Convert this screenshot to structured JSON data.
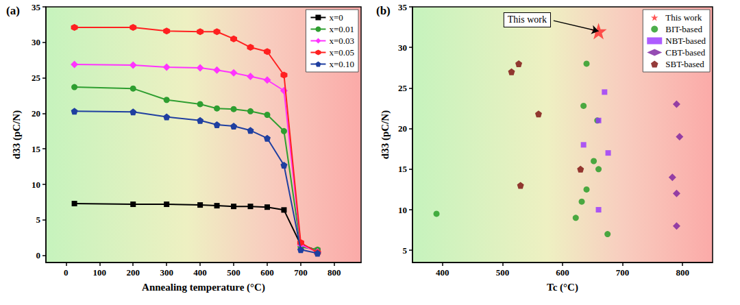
{
  "chart_data": [
    {
      "type": "line",
      "title": "(a)",
      "x_label": "Annealing temperature (°C)",
      "y_label": "d33 (pC/N)",
      "x": [
        25,
        200,
        300,
        400,
        450,
        500,
        550,
        600,
        650,
        700,
        750
      ],
      "series": [
        {
          "name": "x=0",
          "color": "#000000",
          "marker": "square",
          "values": [
            7.3,
            7.2,
            7.2,
            7.1,
            7.0,
            6.9,
            6.9,
            6.8,
            6.4,
            1.5,
            0.7
          ]
        },
        {
          "name": "x=0.01",
          "color": "#2e9e30",
          "marker": "circle",
          "values": [
            23.7,
            23.5,
            21.9,
            21.3,
            20.7,
            20.6,
            20.3,
            19.8,
            17.5,
            1.2,
            0.8
          ]
        },
        {
          "name": "x=0.03",
          "color": "#ff33ff",
          "marker": "diamond",
          "values": [
            26.9,
            26.8,
            26.5,
            26.4,
            26.1,
            25.7,
            25.2,
            24.7,
            23.2,
            1.5,
            0.5
          ]
        },
        {
          "name": "x=0.05",
          "color": "#ff2020",
          "marker": "hexagon",
          "values": [
            32.1,
            32.1,
            31.6,
            31.5,
            31.5,
            30.5,
            29.3,
            28.7,
            25.4,
            1.8,
            0.4
          ]
        },
        {
          "name": "x=0.10",
          "color": "#1f3fa0",
          "marker": "pentagon",
          "values": [
            20.3,
            20.2,
            19.5,
            19.0,
            18.4,
            18.2,
            17.6,
            16.5,
            12.7,
            0.8,
            0.3
          ]
        }
      ],
      "xlim": [
        -60,
        880
      ],
      "xticks": [
        0,
        100,
        200,
        300,
        400,
        500,
        600,
        700,
        800
      ],
      "ylim": [
        -1,
        35
      ],
      "yticks": [
        0,
        5,
        10,
        15,
        20,
        25,
        30,
        35
      ],
      "grid": false,
      "legend": "upper right"
    },
    {
      "type": "scatter",
      "title": "(b)",
      "x_label": "Tc (°C)",
      "y_label": "d33 (pC/N)",
      "series": [
        {
          "name": "This work",
          "color": "#ff2a2a",
          "marker": "star",
          "x": [
            660
          ],
          "values": [
            32
          ]
        },
        {
          "name": "BIT-based",
          "color": "#1f9a1f",
          "marker": "circle",
          "x": [
            390,
            640,
            635,
            658,
            652,
            660,
            640,
            632,
            622,
            675
          ],
          "values": [
            9.5,
            28,
            22.8,
            21,
            16,
            15,
            12.5,
            11,
            9,
            7
          ]
        },
        {
          "name": "NBT-based",
          "color": "#9933ff",
          "marker": "square",
          "x": [
            670,
            660,
            635,
            676,
            660
          ],
          "values": [
            24.5,
            21,
            18,
            17,
            10
          ]
        },
        {
          "name": "CBT-based",
          "color": "#7a1fa0",
          "marker": "diamond",
          "x": [
            790,
            795,
            783,
            790,
            790
          ],
          "values": [
            23,
            19,
            14,
            12,
            8
          ]
        },
        {
          "name": "SBT-based",
          "color": "#7a0a0a",
          "marker": "pentagon",
          "x": [
            515,
            527,
            560,
            630,
            530
          ],
          "values": [
            27,
            28,
            21.8,
            15,
            13
          ]
        }
      ],
      "annotations": [
        {
          "text": "This work",
          "xy": [
            660,
            32
          ],
          "xytext": [
            585,
            33.3
          ]
        }
      ],
      "xlim": [
        350,
        850
      ],
      "xticks": [
        400,
        500,
        600,
        700,
        800
      ],
      "ylim": [
        3.5,
        35
      ],
      "yticks": [
        5,
        10,
        15,
        20,
        25,
        30,
        35
      ],
      "grid": false,
      "legend": "upper right"
    }
  ]
}
